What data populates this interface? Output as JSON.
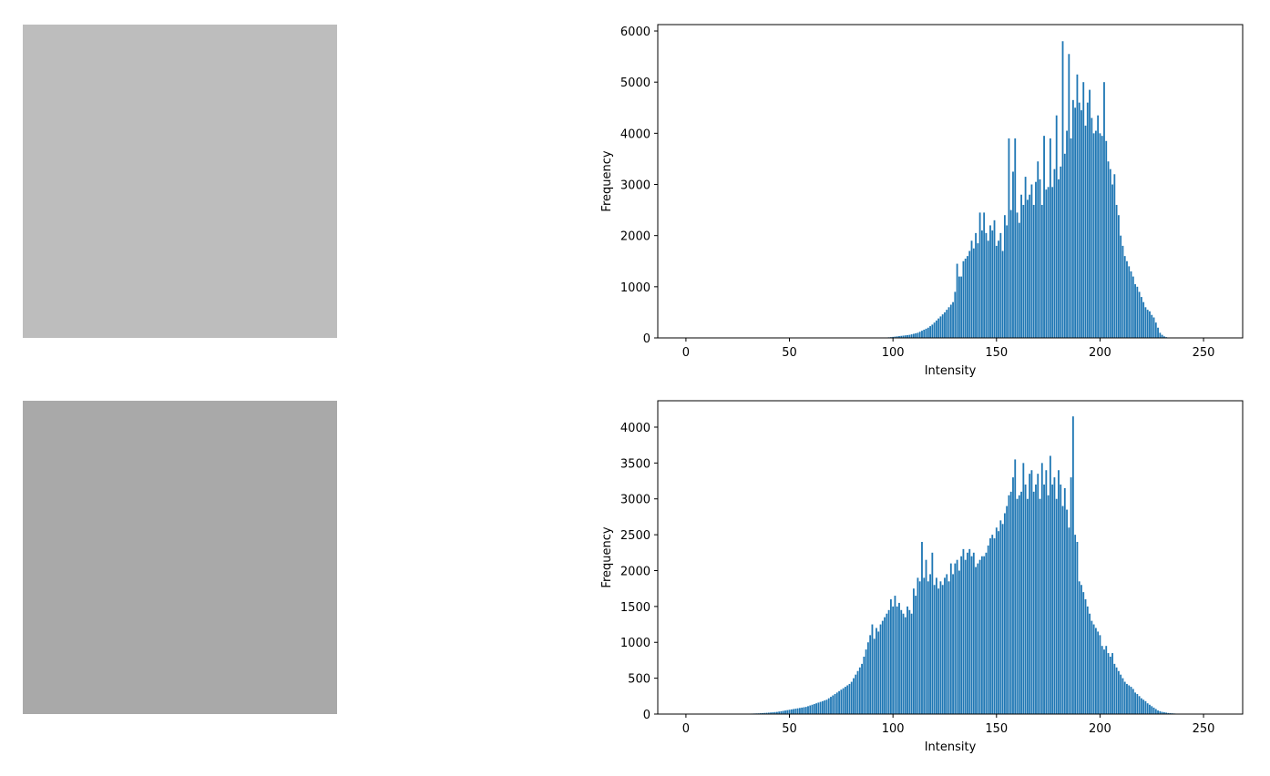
{
  "chart_data": [
    {
      "type": "bar",
      "color": "#1f77b4",
      "xlabel": "Intensity",
      "ylabel": "Frequency",
      "xlim": [
        -13.6,
        268.9
      ],
      "xticks": [
        0,
        50,
        100,
        150,
        200,
        250
      ],
      "ylim": [
        0,
        6125
      ],
      "yticks": [
        0,
        1000,
        2000,
        3000,
        4000,
        5000,
        6000
      ],
      "x": [
        0,
        1,
        2,
        3,
        4,
        5,
        6,
        7,
        8,
        9,
        10,
        11,
        12,
        13,
        14,
        15,
        16,
        17,
        18,
        19,
        20,
        21,
        22,
        23,
        24,
        25,
        26,
        27,
        28,
        29,
        30,
        31,
        32,
        33,
        34,
        35,
        36,
        37,
        38,
        39,
        40,
        41,
        42,
        43,
        44,
        45,
        46,
        47,
        48,
        49,
        50,
        51,
        52,
        53,
        54,
        55,
        56,
        57,
        58,
        59,
        60,
        61,
        62,
        63,
        64,
        65,
        66,
        67,
        68,
        69,
        70,
        71,
        72,
        73,
        74,
        75,
        76,
        77,
        78,
        79,
        80,
        81,
        82,
        83,
        84,
        85,
        86,
        87,
        88,
        89,
        90,
        91,
        92,
        93,
        94,
        95,
        96,
        97,
        98,
        99,
        100,
        101,
        102,
        103,
        104,
        105,
        106,
        107,
        108,
        109,
        110,
        111,
        112,
        113,
        114,
        115,
        116,
        117,
        118,
        119,
        120,
        121,
        122,
        123,
        124,
        125,
        126,
        127,
        128,
        129,
        130,
        131,
        132,
        133,
        134,
        135,
        136,
        137,
        138,
        139,
        140,
        141,
        142,
        143,
        144,
        145,
        146,
        147,
        148,
        149,
        150,
        151,
        152,
        153,
        154,
        155,
        156,
        157,
        158,
        159,
        160,
        161,
        162,
        163,
        164,
        165,
        166,
        167,
        168,
        169,
        170,
        171,
        172,
        173,
        174,
        175,
        176,
        177,
        178,
        179,
        180,
        181,
        182,
        183,
        184,
        185,
        186,
        187,
        188,
        189,
        190,
        191,
        192,
        193,
        194,
        195,
        196,
        197,
        198,
        199,
        200,
        201,
        202,
        203,
        204,
        205,
        206,
        207,
        208,
        209,
        210,
        211,
        212,
        213,
        214,
        215,
        216,
        217,
        218,
        219,
        220,
        221,
        222,
        223,
        224,
        225,
        226,
        227,
        228,
        229,
        230,
        231,
        232,
        233,
        234,
        235,
        236,
        237,
        238,
        239,
        240,
        241,
        242,
        243,
        244,
        245,
        246,
        247,
        248,
        249,
        250,
        251,
        252,
        253,
        254,
        255
      ],
      "values": [
        0,
        0,
        0,
        0,
        0,
        0,
        0,
        0,
        0,
        0,
        0,
        0,
        0,
        0,
        0,
        0,
        0,
        0,
        0,
        0,
        0,
        0,
        0,
        0,
        0,
        0,
        0,
        0,
        0,
        0,
        0,
        0,
        0,
        0,
        0,
        0,
        0,
        0,
        0,
        0,
        0,
        0,
        0,
        0,
        0,
        0,
        0,
        0,
        0,
        0,
        0,
        0,
        0,
        0,
        0,
        0,
        0,
        0,
        0,
        0,
        0,
        0,
        0,
        0,
        0,
        0,
        0,
        0,
        0,
        0,
        0,
        0,
        0,
        0,
        0,
        0,
        0,
        0,
        0,
        0,
        0,
        0,
        0,
        0,
        0,
        0,
        0,
        0,
        0,
        0,
        0,
        0,
        0,
        0,
        0,
        2,
        5,
        8,
        12,
        15,
        20,
        25,
        30,
        35,
        40,
        45,
        50,
        55,
        60,
        70,
        80,
        90,
        100,
        120,
        140,
        160,
        180,
        200,
        230,
        260,
        300,
        340,
        380,
        420,
        460,
        500,
        550,
        600,
        650,
        700,
        900,
        1450,
        1200,
        1200,
        1500,
        1550,
        1600,
        1700,
        1900,
        1750,
        2050,
        1850,
        2450,
        2100,
        2450,
        2050,
        1900,
        2200,
        2100,
        2300,
        1800,
        1900,
        2050,
        1700,
        2400,
        2200,
        3900,
        2500,
        3250,
        3900,
        2450,
        2250,
        2800,
        2600,
        3150,
        2700,
        2800,
        3000,
        2600,
        3050,
        3450,
        3100,
        2600,
        3950,
        2900,
        2950,
        3900,
        2950,
        3300,
        4350,
        3100,
        3350,
        5800,
        3600,
        4050,
        5550,
        3900,
        4650,
        4500,
        5150,
        4600,
        4450,
        5000,
        4150,
        4600,
        4850,
        4300,
        4000,
        4050,
        4350,
        4000,
        3950,
        5000,
        3850,
        3450,
        3300,
        3000,
        3200,
        2600,
        2400,
        2000,
        1800,
        1600,
        1500,
        1400,
        1300,
        1200,
        1050,
        1000,
        900,
        800,
        700,
        600,
        550,
        520,
        450,
        400,
        300,
        200,
        100,
        60,
        30,
        15,
        5,
        2,
        0,
        0,
        0,
        0,
        0,
        0,
        0,
        0,
        0,
        0,
        0,
        0,
        0,
        0,
        0,
        0,
        0,
        0,
        0,
        0,
        0
      ]
    },
    {
      "type": "bar",
      "color": "#1f77b4",
      "xlabel": "Intensity",
      "ylabel": "Frequency",
      "xlim": [
        -13.6,
        268.9
      ],
      "xticks": [
        0,
        50,
        100,
        150,
        200,
        250
      ],
      "ylim": [
        0,
        4368
      ],
      "yticks": [
        0,
        500,
        1000,
        1500,
        2000,
        2500,
        3000,
        3500,
        4000
      ],
      "x": [
        0,
        1,
        2,
        3,
        4,
        5,
        6,
        7,
        8,
        9,
        10,
        11,
        12,
        13,
        14,
        15,
        16,
        17,
        18,
        19,
        20,
        21,
        22,
        23,
        24,
        25,
        26,
        27,
        28,
        29,
        30,
        31,
        32,
        33,
        34,
        35,
        36,
        37,
        38,
        39,
        40,
        41,
        42,
        43,
        44,
        45,
        46,
        47,
        48,
        49,
        50,
        51,
        52,
        53,
        54,
        55,
        56,
        57,
        58,
        59,
        60,
        61,
        62,
        63,
        64,
        65,
        66,
        67,
        68,
        69,
        70,
        71,
        72,
        73,
        74,
        75,
        76,
        77,
        78,
        79,
        80,
        81,
        82,
        83,
        84,
        85,
        86,
        87,
        88,
        89,
        90,
        91,
        92,
        93,
        94,
        95,
        96,
        97,
        98,
        99,
        100,
        101,
        102,
        103,
        104,
        105,
        106,
        107,
        108,
        109,
        110,
        111,
        112,
        113,
        114,
        115,
        116,
        117,
        118,
        119,
        120,
        121,
        122,
        123,
        124,
        125,
        126,
        127,
        128,
        129,
        130,
        131,
        132,
        133,
        134,
        135,
        136,
        137,
        138,
        139,
        140,
        141,
        142,
        143,
        144,
        145,
        146,
        147,
        148,
        149,
        150,
        151,
        152,
        153,
        154,
        155,
        156,
        157,
        158,
        159,
        160,
        161,
        162,
        163,
        164,
        165,
        166,
        167,
        168,
        169,
        170,
        171,
        172,
        173,
        174,
        175,
        176,
        177,
        178,
        179,
        180,
        181,
        182,
        183,
        184,
        185,
        186,
        187,
        188,
        189,
        190,
        191,
        192,
        193,
        194,
        195,
        196,
        197,
        198,
        199,
        200,
        201,
        202,
        203,
        204,
        205,
        206,
        207,
        208,
        209,
        210,
        211,
        212,
        213,
        214,
        215,
        216,
        217,
        218,
        219,
        220,
        221,
        222,
        223,
        224,
        225,
        226,
        227,
        228,
        229,
        230,
        231,
        232,
        233,
        234,
        235,
        236,
        237,
        238,
        239,
        240,
        241,
        242,
        243,
        244,
        245,
        246,
        247,
        248,
        249,
        250,
        251,
        252,
        253,
        254,
        255
      ],
      "values": [
        0,
        0,
        0,
        0,
        0,
        0,
        0,
        0,
        0,
        0,
        0,
        0,
        0,
        0,
        0,
        0,
        0,
        0,
        0,
        0,
        0,
        0,
        0,
        0,
        0,
        0,
        0,
        0,
        3,
        4,
        5,
        6,
        7,
        8,
        9,
        10,
        12,
        14,
        16,
        18,
        20,
        22,
        25,
        28,
        30,
        35,
        40,
        45,
        50,
        55,
        60,
        65,
        70,
        75,
        80,
        85,
        90,
        95,
        100,
        110,
        120,
        130,
        140,
        150,
        160,
        170,
        180,
        190,
        200,
        220,
        240,
        260,
        280,
        300,
        320,
        340,
        360,
        380,
        400,
        420,
        450,
        500,
        550,
        600,
        650,
        700,
        800,
        900,
        1000,
        1100,
        1250,
        1050,
        1200,
        1150,
        1250,
        1300,
        1350,
        1400,
        1450,
        1600,
        1500,
        1650,
        1500,
        1550,
        1450,
        1400,
        1350,
        1500,
        1450,
        1400,
        1750,
        1650,
        1900,
        1850,
        2400,
        1900,
        2150,
        1850,
        1950,
        2250,
        1800,
        1900,
        1750,
        1850,
        1800,
        1900,
        1950,
        1850,
        2100,
        1950,
        2100,
        2150,
        2000,
        2200,
        2300,
        2150,
        2250,
        2300,
        2200,
        2250,
        2050,
        2100,
        2150,
        2200,
        2200,
        2250,
        2350,
        2450,
        2500,
        2450,
        2600,
        2550,
        2700,
        2650,
        2800,
        2900,
        3050,
        3100,
        3300,
        3550,
        3000,
        3050,
        3100,
        3500,
        3200,
        3000,
        3350,
        3400,
        3100,
        3200,
        3350,
        3000,
        3500,
        3200,
        3400,
        3050,
        3600,
        3200,
        3300,
        3000,
        3400,
        3200,
        2900,
        3150,
        2850,
        2600,
        3300,
        4150,
        2500,
        2400,
        1850,
        1800,
        1700,
        1600,
        1500,
        1400,
        1300,
        1250,
        1200,
        1150,
        1100,
        950,
        900,
        950,
        850,
        800,
        850,
        700,
        650,
        600,
        550,
        500,
        450,
        420,
        400,
        380,
        350,
        300,
        280,
        250,
        220,
        200,
        180,
        150,
        130,
        110,
        90,
        70,
        50,
        40,
        30,
        25,
        20,
        15,
        12,
        10,
        8,
        6,
        5,
        4,
        3,
        2,
        2,
        1,
        1,
        0,
        0,
        0,
        0,
        0,
        0,
        0,
        0,
        0,
        0,
        0
      ]
    }
  ]
}
